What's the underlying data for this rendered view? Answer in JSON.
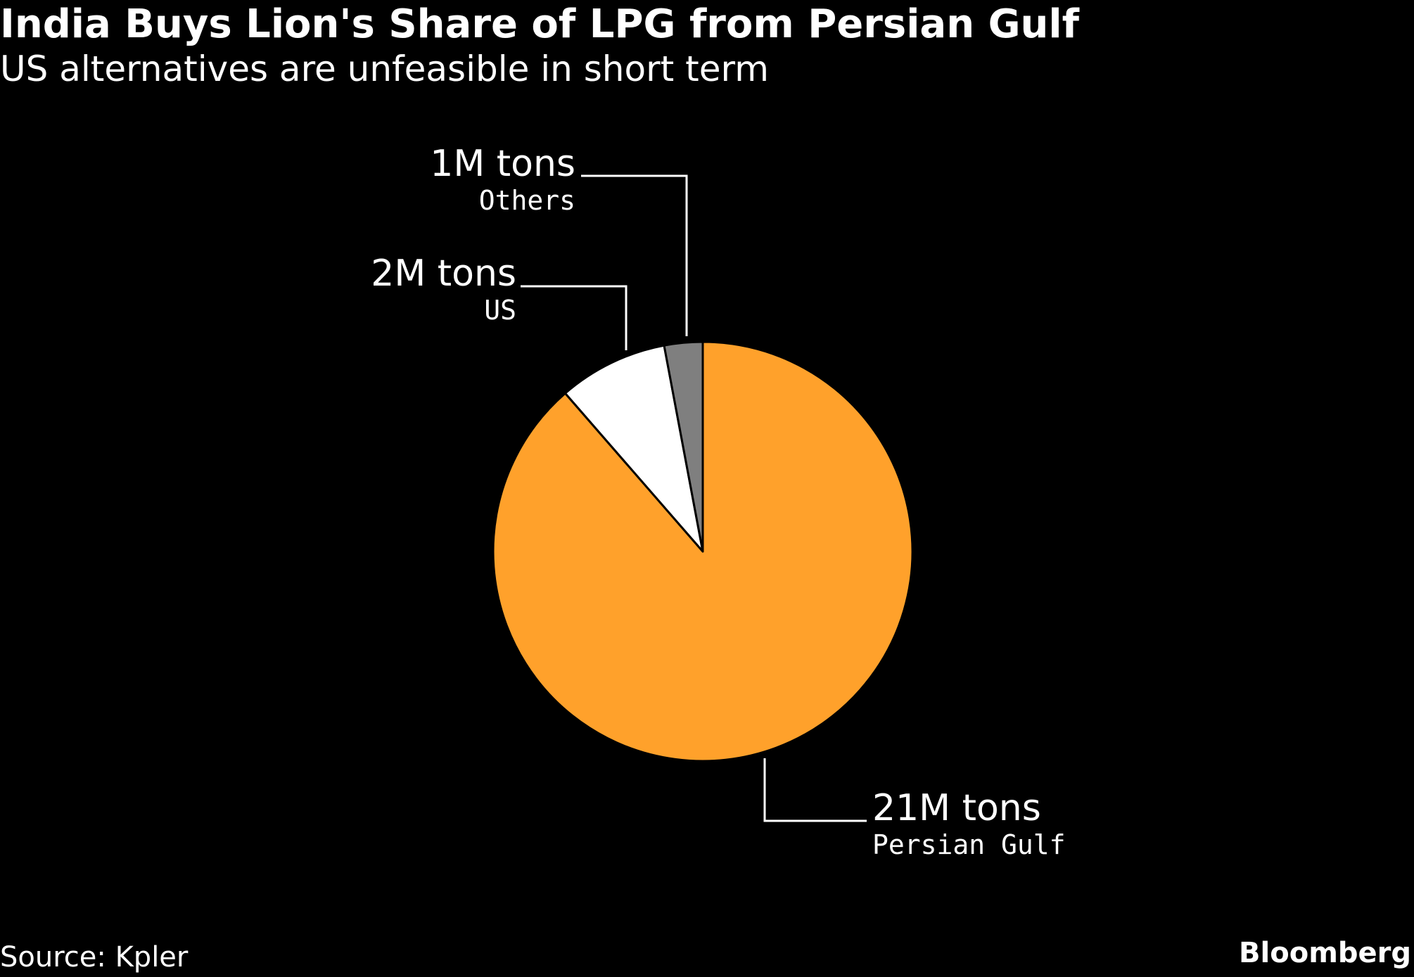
{
  "header": {
    "title": "India Buys Lion's Share of LPG from Persian Gulf",
    "subtitle": "US alternatives are unfeasible in short term"
  },
  "footer": {
    "source": "Source: Kpler",
    "brand": "Bloomberg"
  },
  "chart_data": {
    "type": "pie",
    "title": "India Buys Lion's Share of LPG from Persian Gulf",
    "subtitle": "US alternatives are unfeasible in short term",
    "unit": "M tons",
    "slices": [
      {
        "name": "Persian Gulf",
        "value": 21,
        "label": "21M tons",
        "color": "#ffa12b"
      },
      {
        "name": "US",
        "value": 2,
        "label": "2M tons",
        "color": "#ffffff"
      },
      {
        "name": "Others",
        "value": 0.7,
        "label": "1M tons",
        "color": "#7f7f7f"
      }
    ],
    "start": "12 o'clock",
    "direction": "clockwise"
  }
}
